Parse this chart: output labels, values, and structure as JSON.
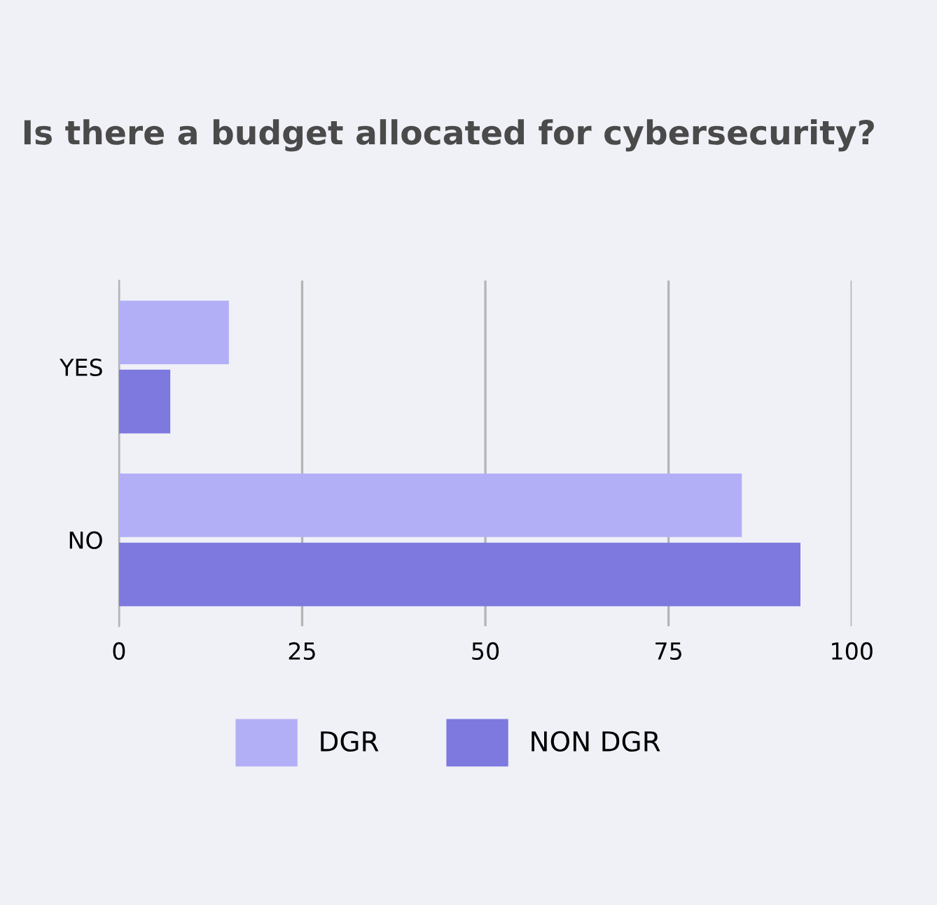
{
  "chart_data": {
    "type": "bar",
    "orientation": "horizontal",
    "title": "Is there a budget allocated for cybersecurity?",
    "categories": [
      "YES",
      "NO"
    ],
    "series": [
      {
        "name": "DGR",
        "color": "#b3aff7",
        "values": [
          15,
          85
        ]
      },
      {
        "name": "NON DGR",
        "color": "#7d79df",
        "values": [
          7,
          93
        ]
      }
    ],
    "xlim": [
      0,
      100
    ],
    "xticks": [
      0,
      25,
      50,
      75,
      100
    ],
    "grid": "x",
    "legend": "bottom"
  }
}
